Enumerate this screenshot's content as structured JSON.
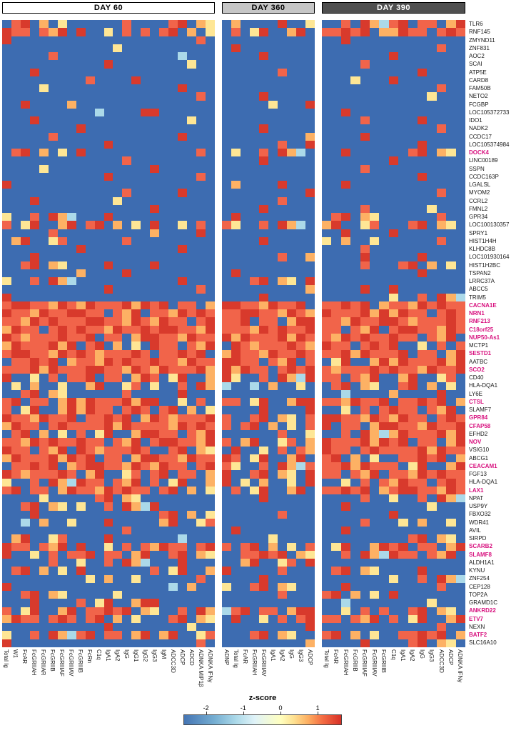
{
  "panels": [
    {
      "label": "DAY 60",
      "header_bg": "#ffffff",
      "header_fg": "#000000"
    },
    {
      "label": "DAY 360",
      "header_bg": "#c6c6c6",
      "header_fg": "#000000"
    },
    {
      "label": "DAY 390",
      "header_bg": "#4f4f4f",
      "header_fg": "#ffffff"
    }
  ],
  "legend": {
    "title": "z-score",
    "ticks": [
      {
        "v": -2,
        "f": 0.1425
      },
      {
        "v": -1,
        "f": 0.3775
      },
      {
        "v": 0,
        "f": 0.6125
      },
      {
        "v": 1,
        "f": 0.8475
      }
    ],
    "range": [
      -2.6,
      1.65
    ],
    "gradient": [
      [
        0,
        "#4575b4"
      ],
      [
        0.19,
        "#74add1"
      ],
      [
        0.33,
        "#abd9e9"
      ],
      [
        0.45,
        "#e0f3f8"
      ],
      [
        0.615,
        "#ffffbf"
      ],
      [
        0.7,
        "#fee090"
      ],
      [
        0.79,
        "#fdae61"
      ],
      [
        0.88,
        "#f46d43"
      ],
      [
        1,
        "#d73027"
      ]
    ]
  },
  "colors": {
    "highlight_gene": "#d8127f",
    "normal_gene": "#1a1a1a"
  },
  "chart_data": {
    "type": "heatmap",
    "value_name": "z-score",
    "palette": {
      "0": "#3d6cb1",
      "1": "#7ab0d4",
      "2": "#abd9e9",
      "3": "#fee695",
      "4": "#fdb164",
      "5": "#f1644a",
      "6": "#d83a2c"
    },
    "palette_z": {
      "0": -2.2,
      "1": -1.4,
      "2": -0.9,
      "3": -0.1,
      "4": 0.4,
      "5": 0.9,
      "6": 1.4
    },
    "column_groups": [
      {
        "day": "DAY 60",
        "columns": [
          "Total Ig",
          "W1",
          "FcAR",
          "FcGRIIAH",
          "FcGRIIAR",
          "FcGRIIB",
          "FcGRIIIAF",
          "FcGRIIIAV",
          "FcGRIIIB",
          "FcRn",
          "C1q",
          "IgA1",
          "IgA2",
          "IgG",
          "IgG1",
          "IgG2",
          "IgG3",
          "IgM",
          "ADCC3D",
          "ADCP",
          "ADCD",
          "ADNKA MIP1β",
          "ADNKA IFNγ"
        ]
      },
      {
        "day": "DAY 360",
        "columns": [
          "ADNP",
          "Total Ig",
          "FcAR",
          "FcGRIIAH",
          "FcGRIIIAV",
          "IgA1",
          "IgA2",
          "IgG",
          "IgG3",
          "ADCP"
        ]
      },
      {
        "day": "DAY 390",
        "columns": [
          "Total Ig",
          "FcAR",
          "FcGRIIAH",
          "FcGRIIB",
          "FcGRIIIAF",
          "FcGRIIIAV",
          "FcGRIIIB",
          "C1q",
          "IgA1",
          "IgA2",
          "IgG",
          "IgG3",
          "ADCC3D",
          "ADCP",
          "ADNKA IFNγ"
        ]
      }
    ],
    "rows": [
      {
        "gene": "TLR6",
        "highlight": false,
        "cells": "056040300000050000560430400006003005064256055046"
      },
      {
        "gene": "RNF145",
        "highlight": false,
        "cells": "655054606003050505604030503600460556560446550565"
      },
      {
        "gene": "ZMYND11",
        "highlight": false,
        "cells": "600000000000000000000500000000000006000000000000"
      },
      {
        "gene": "ZNF831",
        "highlight": false,
        "cells": "000000000000300000000000600000000000000000000500"
      },
      {
        "gene": "AOC2",
        "highlight": false,
        "cells": "000005000000000000020000000600000000000060000000"
      },
      {
        "gene": "SCAI",
        "highlight": false,
        "cells": "000000000006000000003000000000000000050000000000"
      },
      {
        "gene": "ATP5E",
        "highlight": false,
        "cells": "000600000000000000000000000005000000000000060000"
      },
      {
        "gene": "CARD8",
        "highlight": false,
        "cells": "000000000500006000000000000000000000300060000000"
      },
      {
        "gene": "FAM50B",
        "highlight": false,
        "cells": "000030000000000000060000000000000000000000000500"
      },
      {
        "gene": "NETO2",
        "highlight": false,
        "cells": "000000000000000000000500000600000000000000003000"
      },
      {
        "gene": "FCGBP",
        "highlight": false,
        "cells": "006000040000000000000000000030006000000000000000"
      },
      {
        "gene": "LOC105372733",
        "highlight": false,
        "cells": "000000000020000660000000000000000006000000000000"
      },
      {
        "gene": "IDO1",
        "highlight": false,
        "cells": "000600000000000000003000000000000000050000060000"
      },
      {
        "gene": "NADK2",
        "highlight": false,
        "cells": "000000006000000000000000000600000000000000000500"
      },
      {
        "gene": "CCDC17",
        "highlight": false,
        "cells": "000005000000000000060000000000004000060000000000"
      },
      {
        "gene": "LOC105374984",
        "highlight": false,
        "cells": "000000000006000000000000000005006000000000060000"
      },
      {
        "gene": "DOCK4",
        "highlight": true,
        "cells": "056040306000000000000500300506420006000000560430"
      },
      {
        "gene": "LINC00189",
        "highlight": false,
        "cells": "000000000000050000000000000600000000000060000000"
      },
      {
        "gene": "SSPN",
        "highlight": false,
        "cells": "000030000000000060000000000000000000050000000000"
      },
      {
        "gene": "CCDC163P",
        "highlight": false,
        "cells": "000000000006000000000500000000000000000000060000"
      },
      {
        "gene": "LGALSL",
        "highlight": false,
        "cells": "600000000000000000000000400006000006000000000000"
      },
      {
        "gene": "MYOM2",
        "highlight": false,
        "cells": "000000000000050000060000000000006000000000000500"
      },
      {
        "gene": "CCRL2",
        "highlight": false,
        "cells": "000600000000300000000000000005000000000000000000"
      },
      {
        "gene": "FMNL2",
        "highlight": false,
        "cells": "000000000000000060000000000600000000050000003000"
      },
      {
        "gene": "GPR34",
        "highlight": false,
        "cells": "300506420006000000000000600000000056043000000500"
      },
      {
        "gene": "LOC100130357",
        "highlight": false,
        "cells": "503600460560403060030505300506420460035000560430"
      },
      {
        "gene": "SPRY1",
        "highlight": false,
        "cells": "000005000000000040000600000000000006000060000000"
      },
      {
        "gene": "HIST1H4H",
        "highlight": false,
        "cells": "046003500000050000000000000600000304003000000500"
      },
      {
        "gene": "KLHDC8B",
        "highlight": false,
        "cells": "000000006000000000060000000000000000050000000000"
      },
      {
        "gene": "LOC101930164",
        "highlight": false,
        "cells": "000600000000000000000000000005004000060000060000"
      },
      {
        "gene": "HIST1H2BC",
        "highlight": false,
        "cells": "005604300006000060000000000000000000050005604030"
      },
      {
        "gene": "TSPAN2",
        "highlight": false,
        "cells": "000000004000060000000000600000000000000000060000"
      },
      {
        "gene": "LRRC37A",
        "highlight": false,
        "cells": "300506420000000000060000005604306000000000000000"
      },
      {
        "gene": "ABCC5",
        "highlight": false,
        "cells": "000000000006000000000500000000004000060060000000"
      },
      {
        "gene": "TRIM5",
        "highlight": false,
        "cells": "600000000000000000000000000600000000000030050642"
      },
      {
        "gene": "CACNA1E",
        "highlight": true,
        "cells": "566554654655564656055046655465560556560455465655"
      },
      {
        "gene": "NRN1",
        "highlight": true,
        "cells": "655465566550546055465655566554654655564646550565"
      },
      {
        "gene": "RNF213",
        "highlight": true,
        "cells": "554656555665546546550565560550466554655665455565"
      },
      {
        "gene": "C18orf25",
        "highlight": true,
        "cells": "465505656554655656655465554656556550546056655465"
      },
      {
        "gene": "NUP50-As1",
        "highlight": true,
        "cells": "654555655605504665546556465556465546565565505460"
      },
      {
        "gene": "MCTP1",
        "highlight": false,
        "cells": "465556460560403065505460654555654655056560030505"
      },
      {
        "gene": "SESTD1",
        "highlight": true,
        "cells": "566554656545556505565604655465565556465556055046"
      },
      {
        "gene": "AATBC",
        "highlight": false,
        "cells": "055656045546565565546556655054605036004646555646"
      },
      {
        "gene": "SCO2",
        "highlight": true,
        "cells": "555646555665546546555646465505656545556565546556"
      },
      {
        "gene": "CD40",
        "highlight": false,
        "cells": "600305055605504650360046300506426550546004600350"
      },
      {
        "gene": "HLA-DQA1",
        "highlight": false,
        "cells": "030400300460035030050642002040030056043005604030"
      },
      {
        "gene": "LY6E",
        "highlight": false,
        "cells": "005604300000050000060000000000000002000040000600"
      },
      {
        "gene": "CTSL",
        "highlight": true,
        "cells": "560550464655564660030505503600466554655605565604"
      },
      {
        "gene": "SLAMF7",
        "highlight": false,
        "cells": "503600464655056505604030000600006003050565505460"
      },
      {
        "gene": "GPR84",
        "highlight": true,
        "cells": "655465560556560465455565005604305665546546550565"
      },
      {
        "gene": "CFAP58",
        "highlight": true,
        "cells": "465505655556465555465655056040305605504665546556"
      },
      {
        "gene": "EFHD2",
        "highlight": false,
        "cells": "056040305036004665505460000005003005064246555646"
      },
      {
        "gene": "NOV",
        "highlight": true,
        "cells": "554656556550546056655465046003504655564656055046"
      },
      {
        "gene": "VSIG10",
        "highlight": false,
        "cells": "655054606545556500560430600305054655056555564655"
      },
      {
        "gene": "ABCG1",
        "highlight": false,
        "cells": "465556465605504665546556503600460560403005565604"
      },
      {
        "gene": "CEACAM1",
        "highlight": true,
        "cells": "055656045665546546550565300506425556465550360046"
      },
      {
        "gene": "FGF13",
        "highlight": false,
        "cells": "654555650460035056055046005604306550546055465655"
      },
      {
        "gene": "HLA-DQA1",
        "highlight": false,
        "cells": "300506426550546050360046030400306003050546550565"
      },
      {
        "gene": "LAX1",
        "highlight": true,
        "cells": "560550465546565505604030503600460556560456655465"
      },
      {
        "gene": "NPAT",
        "highlight": false,
        "cells": "000030000056043000000000000600000000050030050642"
      },
      {
        "gene": "USP9Y",
        "highlight": false,
        "cells": "005604303005064260000000000000000006000000003000"
      },
      {
        "gene": "FBXO32",
        "highlight": false,
        "cells": "000600000000000005604030000005000000000060000000"
      },
      {
        "gene": "WDR41",
        "highlight": false,
        "cells": "002040030006000004600350000000000000050003040030"
      },
      {
        "gene": "AVIL",
        "highlight": false,
        "cells": "000000000000050000000000600000000006000000000000"
      },
      {
        "gene": "SIRPD",
        "highlight": false,
        "cells": "046003500006000000020000000030000000000000560430"
      },
      {
        "gene": "SCARB2",
        "highlight": true,
        "cells": "655054606003050546550565056040305036004656055046"
      },
      {
        "gene": "SLAMF8",
        "highlight": true,
        "cells": "600305055605504600560430055656043005064265505460"
      },
      {
        "gene": "ALDH1A1",
        "highlight": false,
        "cells": "000005003005064200060000046003506000000000000000"
      },
      {
        "gene": "KYNU",
        "highlight": false,
        "cells": "056040306000000050360046000005000056043000060000"
      },
      {
        "gene": "ZNF254",
        "highlight": false,
        "cells": "000000000304003000000500000600000000000030050642"
      },
      {
        "gene": "CEP128",
        "highlight": false,
        "cells": "600000000000000000204003005604300006000000000500"
      },
      {
        "gene": "TOP2A",
        "highlight": false,
        "cells": "005604300000300000000000000005000560403060000000"
      },
      {
        "gene": "GRAMD1C",
        "highlight": false,
        "cells": "000600005036004660000000000000000002000000003000"
      },
      {
        "gene": "ANKRD22",
        "highlight": true,
        "cells": "503600460556560430050642560550466003050500560430"
      },
      {
        "gene": "ETV7",
        "highlight": true,
        "cells": "465505650560403000560430600305056550546050360046"
      },
      {
        "gene": "NEXN",
        "highlight": false,
        "cells": "000000000006000000003000000000006000000000000500"
      },
      {
        "gene": "BATF2",
        "highlight": true,
        "cells": "300506425605504604600350005604300560403005565604"
      },
      {
        "gene": "SLC16A10",
        "highlight": false,
        "cells": "600000000000000000000500000000004000060000560430"
      }
    ]
  }
}
